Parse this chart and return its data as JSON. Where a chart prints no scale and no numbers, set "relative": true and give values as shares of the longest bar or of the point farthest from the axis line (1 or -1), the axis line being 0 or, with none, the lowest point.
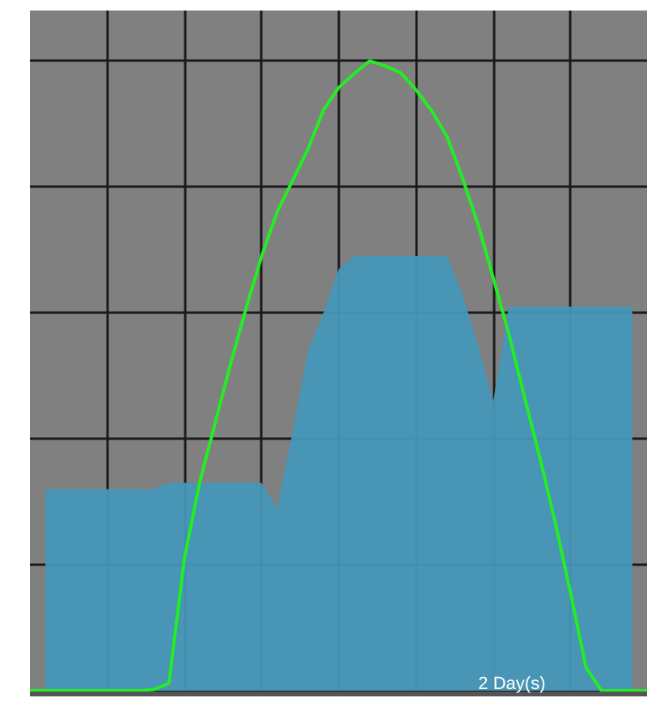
{
  "chart_data": {
    "type": "area",
    "relative": true,
    "xlabel": "2 Day(s)",
    "grid": true,
    "categories": [
      null,
      null,
      null,
      null,
      null,
      null,
      null,
      null,
      null,
      null,
      null,
      null,
      null,
      null,
      null,
      null,
      null,
      null,
      null,
      null,
      null,
      null,
      null,
      null,
      null,
      null,
      null,
      null,
      null,
      null,
      null,
      null,
      null,
      null,
      null,
      null,
      null,
      null,
      null,
      null,
      null
    ],
    "series": [
      {
        "color": "#4596b8",
        "values": [
          null,
          0.32,
          0.32,
          0.32,
          0.32,
          0.32,
          0.32,
          0.32,
          0.32,
          0.33,
          0.33,
          0.33,
          0.33,
          0.33,
          0.33,
          0.33,
          0.29,
          0.41,
          0.54,
          0.6,
          0.67,
          0.69,
          0.69,
          0.69,
          0.69,
          0.69,
          0.69,
          0.69,
          0.63,
          0.55,
          0.46,
          0.61,
          0.61,
          0.61,
          0.61,
          0.61,
          0.61,
          0.61,
          0.61,
          0.61,
          null
        ]
      },
      {
        "type": "line",
        "color": "#22ee22",
        "values": [
          0,
          0,
          0,
          0,
          0,
          0,
          0,
          0,
          0.002,
          0.012,
          0.21,
          0.332,
          0.426,
          0.52,
          0.608,
          0.69,
          0.76,
          0.81,
          0.86,
          0.922,
          0.958,
          0.98,
          1.0,
          0.992,
          0.981,
          0.954,
          0.921,
          0.88,
          0.814,
          0.741,
          0.655,
          0.567,
          0.468,
          0.371,
          0.268,
          0.155,
          0.037,
          0,
          0,
          0,
          0
        ]
      }
    ]
  }
}
